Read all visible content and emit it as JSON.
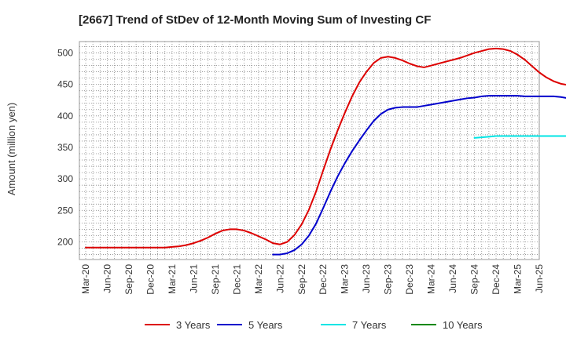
{
  "chart_data": {
    "type": "line",
    "title": "[2667]  Trend of StDev of 12-Month Moving Sum of Investing CF",
    "ylabel": "Amount (million yen)",
    "xlabel": "",
    "ylim": [
      172,
      518
    ],
    "yticks": [
      200,
      250,
      300,
      350,
      400,
      450,
      500
    ],
    "x_tick_labels": [
      "Mar-20",
      "Jun-20",
      "Sep-20",
      "Dec-20",
      "Mar-21",
      "Jun-21",
      "Sep-21",
      "Dec-21",
      "Mar-22",
      "Jun-22",
      "Sep-22",
      "Dec-22",
      "Mar-23",
      "Jun-23",
      "Sep-23",
      "Dec-23",
      "Mar-24",
      "Jun-24",
      "Sep-24",
      "Dec-24",
      "Mar-25",
      "Jun-25"
    ],
    "grid": true,
    "legend_position": "bottom",
    "series": [
      {
        "name": "3 Years",
        "color": "#dd0000",
        "values": [
          191,
          191,
          191,
          191,
          191,
          191,
          191,
          191,
          191,
          191,
          191,
          191,
          192,
          193,
          195,
          198,
          202,
          207,
          213,
          218,
          220,
          220,
          218,
          214,
          209,
          204,
          198,
          196,
          200,
          211,
          228,
          251,
          280,
          314,
          347,
          377,
          405,
          431,
          453,
          470,
          484,
          492,
          494,
          492,
          488,
          483,
          479,
          477,
          480,
          483,
          486,
          489,
          492,
          496,
          500,
          503,
          506,
          507,
          506,
          503,
          497,
          489,
          479,
          469,
          461,
          455,
          451,
          449,
          448,
          449,
          451,
          453,
          454,
          454,
          450,
          440,
          422
        ]
      },
      {
        "name": "5 Years",
        "color": "#0000cc",
        "values": [
          null,
          null,
          null,
          null,
          null,
          null,
          null,
          null,
          null,
          null,
          null,
          null,
          null,
          null,
          null,
          null,
          null,
          null,
          null,
          null,
          null,
          null,
          null,
          null,
          null,
          null,
          180,
          180,
          182,
          187,
          196,
          210,
          229,
          254,
          280,
          304,
          325,
          344,
          361,
          377,
          392,
          403,
          410,
          413,
          414,
          414,
          414,
          416,
          418,
          420,
          422,
          424,
          426,
          428,
          429,
          431,
          432,
          432,
          432,
          432,
          432,
          431,
          431,
          431,
          431,
          431,
          430,
          428,
          424,
          419,
          414,
          411,
          409,
          408,
          407,
          407,
          407
        ]
      },
      {
        "name": "7 Years",
        "color": "#00e5e5",
        "values": [
          null,
          null,
          null,
          null,
          null,
          null,
          null,
          null,
          null,
          null,
          null,
          null,
          null,
          null,
          null,
          null,
          null,
          null,
          null,
          null,
          null,
          null,
          null,
          null,
          null,
          null,
          null,
          null,
          null,
          null,
          null,
          null,
          null,
          null,
          null,
          null,
          null,
          null,
          null,
          null,
          null,
          null,
          null,
          null,
          null,
          null,
          null,
          null,
          null,
          null,
          null,
          null,
          null,
          null,
          365,
          366,
          367,
          368,
          368,
          368,
          368,
          368,
          368,
          368,
          368,
          368,
          368,
          368,
          368,
          368,
          368,
          368,
          368,
          369,
          369,
          369,
          370
        ]
      },
      {
        "name": "10 Years",
        "color": "#008800",
        "values": []
      }
    ]
  }
}
